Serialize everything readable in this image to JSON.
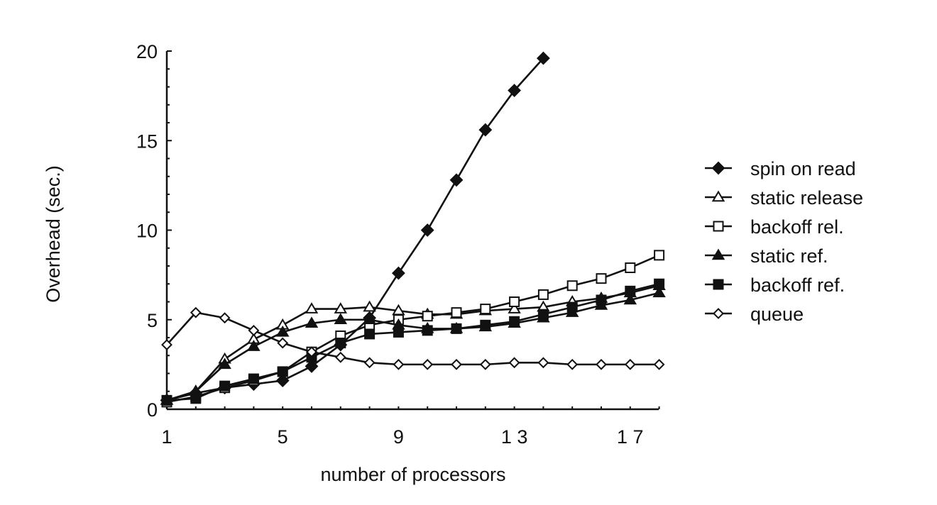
{
  "chart_data": {
    "type": "line",
    "title": "",
    "xlabel": "number of processors",
    "ylabel": "Overhead (sec.)",
    "xlim": [
      1,
      18
    ],
    "ylim": [
      0,
      20
    ],
    "xticks": [
      "1",
      "5",
      "9",
      "1 3",
      "1 7"
    ],
    "xtick_values": [
      1,
      5,
      9,
      13,
      17
    ],
    "yticks": [
      "0",
      "5",
      "10",
      "15",
      "20"
    ],
    "ytick_values": [
      0,
      5,
      10,
      15,
      20
    ],
    "grid": false,
    "legend_position": "right",
    "series": [
      {
        "name": "spin on read",
        "marker": "diamond",
        "fill": "filled",
        "x": [
          1,
          2,
          3,
          4,
          5,
          6,
          7,
          8,
          9,
          10,
          11,
          12,
          13,
          14
        ],
        "y": [
          0.5,
          0.9,
          1.2,
          1.4,
          1.6,
          2.4,
          3.6,
          5.1,
          7.6,
          10.0,
          12.8,
          15.6,
          17.8,
          19.6
        ]
      },
      {
        "name": "static release",
        "marker": "triangle",
        "fill": "open",
        "x": [
          1,
          2,
          3,
          4,
          5,
          6,
          7,
          8,
          9,
          10,
          11,
          12,
          13,
          14,
          15,
          16,
          17,
          18
        ],
        "y": [
          0.5,
          1.0,
          2.8,
          3.9,
          4.7,
          5.6,
          5.6,
          5.7,
          5.5,
          5.3,
          5.3,
          5.5,
          5.6,
          5.7,
          6.0,
          6.2,
          6.5,
          6.9
        ]
      },
      {
        "name": "backoff rel.",
        "marker": "square",
        "fill": "open",
        "x": [
          1,
          2,
          3,
          4,
          5,
          6,
          7,
          8,
          9,
          10,
          11,
          12,
          13,
          14,
          15,
          16,
          17,
          18
        ],
        "y": [
          0.4,
          0.7,
          1.2,
          1.6,
          2.1,
          3.2,
          4.1,
          4.7,
          5.0,
          5.2,
          5.4,
          5.6,
          6.0,
          6.4,
          6.9,
          7.3,
          7.9,
          8.6
        ]
      },
      {
        "name": "static ref.",
        "marker": "triangle",
        "fill": "filled",
        "x": [
          1,
          2,
          3,
          4,
          5,
          6,
          7,
          8,
          9,
          10,
          11,
          12,
          13,
          14,
          15,
          16,
          17,
          18
        ],
        "y": [
          0.5,
          1.0,
          2.5,
          3.5,
          4.3,
          4.8,
          5.0,
          5.0,
          4.7,
          4.5,
          4.5,
          4.6,
          4.8,
          5.1,
          5.4,
          5.8,
          6.1,
          6.5
        ]
      },
      {
        "name": "backoff ref.",
        "marker": "square",
        "fill": "filled",
        "x": [
          1,
          2,
          3,
          4,
          5,
          6,
          7,
          8,
          9,
          10,
          11,
          12,
          13,
          14,
          15,
          16,
          17,
          18
        ],
        "y": [
          0.5,
          0.6,
          1.3,
          1.7,
          2.1,
          2.9,
          3.7,
          4.2,
          4.3,
          4.4,
          4.5,
          4.7,
          4.9,
          5.3,
          5.7,
          6.1,
          6.6,
          7.0
        ]
      },
      {
        "name": "queue",
        "marker": "diamond",
        "fill": "open",
        "x": [
          1,
          2,
          3,
          4,
          5,
          6,
          7,
          8,
          9,
          10,
          11,
          12,
          13,
          14,
          15,
          16,
          17,
          18
        ],
        "y": [
          3.6,
          5.4,
          5.1,
          4.4,
          3.7,
          3.2,
          2.9,
          2.6,
          2.5,
          2.5,
          2.5,
          2.5,
          2.6,
          2.6,
          2.5,
          2.5,
          2.5,
          2.5
        ]
      }
    ]
  }
}
